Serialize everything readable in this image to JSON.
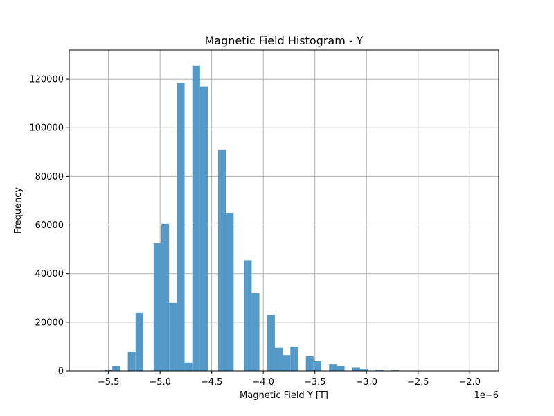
{
  "chart_data": {
    "type": "bar",
    "title": "Magnetic Field Histogram - Y",
    "xlabel": "Magnetic Field Y [T]",
    "ylabel": "Frequency",
    "x_offset_label": "1e−6",
    "xlim": [
      -5.88,
      -1.72
    ],
    "ylim": [
      0,
      132000
    ],
    "grid": true,
    "bar_color": "#5499c7",
    "bar_width": 0.075,
    "x_ticks": [
      -5.5,
      -5.0,
      -4.5,
      -4.0,
      -3.5,
      -3.0,
      -2.5,
      -2.0
    ],
    "x_tick_labels": [
      "−5.5",
      "−5.0",
      "−4.5",
      "−4.0",
      "−3.5",
      "−3.0",
      "−2.5",
      "−2.0"
    ],
    "y_ticks": [
      0,
      20000,
      40000,
      60000,
      80000,
      100000,
      120000
    ],
    "y_tick_labels": [
      "0",
      "20000",
      "40000",
      "60000",
      "80000",
      "100000",
      "120000"
    ],
    "bins": [
      {
        "x": -5.5,
        "value": 300
      },
      {
        "x": -5.425,
        "value": 2000
      },
      {
        "x": -5.275,
        "value": 8000
      },
      {
        "x": -5.2,
        "value": 24000
      },
      {
        "x": -5.025,
        "value": 52500
      },
      {
        "x": -4.95,
        "value": 60500
      },
      {
        "x": -4.875,
        "value": 28000
      },
      {
        "x": -4.8,
        "value": 118500
      },
      {
        "x": -4.725,
        "value": 3500
      },
      {
        "x": -4.65,
        "value": 125500
      },
      {
        "x": -4.575,
        "value": 117000
      },
      {
        "x": -4.4,
        "value": 91000
      },
      {
        "x": -4.325,
        "value": 65000
      },
      {
        "x": -4.15,
        "value": 45500
      },
      {
        "x": -4.075,
        "value": 32000
      },
      {
        "x": -3.925,
        "value": 23000
      },
      {
        "x": -3.85,
        "value": 9500
      },
      {
        "x": -3.775,
        "value": 6500
      },
      {
        "x": -3.7,
        "value": 10000
      },
      {
        "x": -3.55,
        "value": 6000
      },
      {
        "x": -3.475,
        "value": 4000
      },
      {
        "x": -3.325,
        "value": 2800
      },
      {
        "x": -3.25,
        "value": 2000
      },
      {
        "x": -3.1,
        "value": 1300
      },
      {
        "x": -3.025,
        "value": 800
      },
      {
        "x": -2.875,
        "value": 500
      },
      {
        "x": -2.725,
        "value": 250
      },
      {
        "x": -2.575,
        "value": 80
      },
      {
        "x": -2.425,
        "value": 50
      },
      {
        "x": -2.275,
        "value": 30
      },
      {
        "x": -2.125,
        "value": 20
      },
      {
        "x": -1.975,
        "value": 10
      },
      {
        "x": -1.825,
        "value": 10
      }
    ]
  }
}
